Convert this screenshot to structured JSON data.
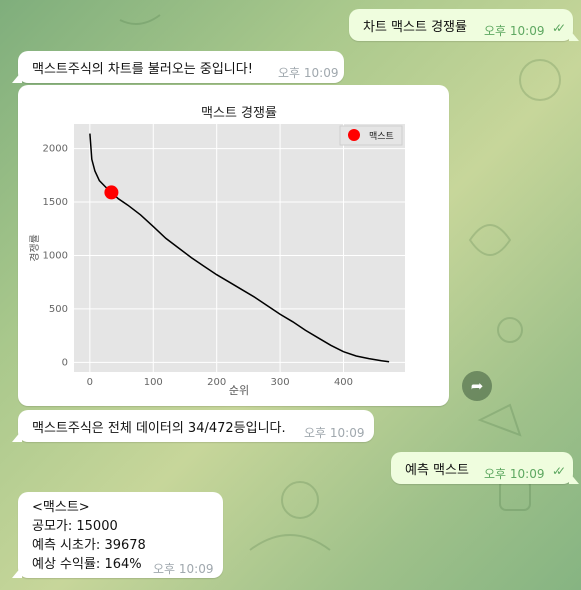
{
  "messages": [
    {
      "text": "차트 맥스트 경쟁률",
      "time": "오후 10:09",
      "ticks": "✓✓"
    },
    {
      "text": "맥스트주식의 차트를 불러오는 중입니다!",
      "time": "오후 10:09"
    },
    {
      "text": "맥스트주식은 전체 데이터의 34/472등입니다.",
      "time": "오후 10:09"
    },
    {
      "text": "예측 맥스트",
      "time": "오후 10:09",
      "ticks": "✓✓"
    },
    {
      "lines": [
        "<맥스트>",
        "공모가: 15000",
        "예측 시초가: 39678",
        "예상 수익률: 164%"
      ],
      "time": "오후 10:09"
    }
  ],
  "chart_data": {
    "type": "line",
    "title": "맥스트  경쟁률",
    "xlabel": "순위",
    "ylabel": "경쟁률",
    "xlim": [
      -25,
      497
    ],
    "ylim": [
      -90,
      2230
    ],
    "x_ticks": [
      0,
      100,
      200,
      300,
      400
    ],
    "y_ticks": [
      0,
      500,
      1000,
      1500,
      2000
    ],
    "grid": true,
    "legend_position": "top-right",
    "series": [
      {
        "color": "#000000",
        "x": [
          0,
          3,
          8,
          15,
          25,
          34,
          45,
          60,
          80,
          100,
          120,
          140,
          160,
          180,
          200,
          220,
          240,
          260,
          280,
          300,
          320,
          340,
          360,
          380,
          400,
          420,
          440,
          460,
          472
        ],
        "y": [
          2140,
          1900,
          1790,
          1700,
          1640,
          1590,
          1530,
          1470,
          1380,
          1270,
          1160,
          1070,
          980,
          900,
          820,
          750,
          680,
          610,
          530,
          450,
          380,
          300,
          230,
          160,
          100,
          60,
          35,
          15,
          5
        ]
      },
      {
        "name": "맥스트",
        "color": "#ff0000",
        "marker": "point",
        "x": [
          34
        ],
        "y": [
          1590
        ]
      }
    ]
  },
  "share_icon": "share-arrow-icon"
}
